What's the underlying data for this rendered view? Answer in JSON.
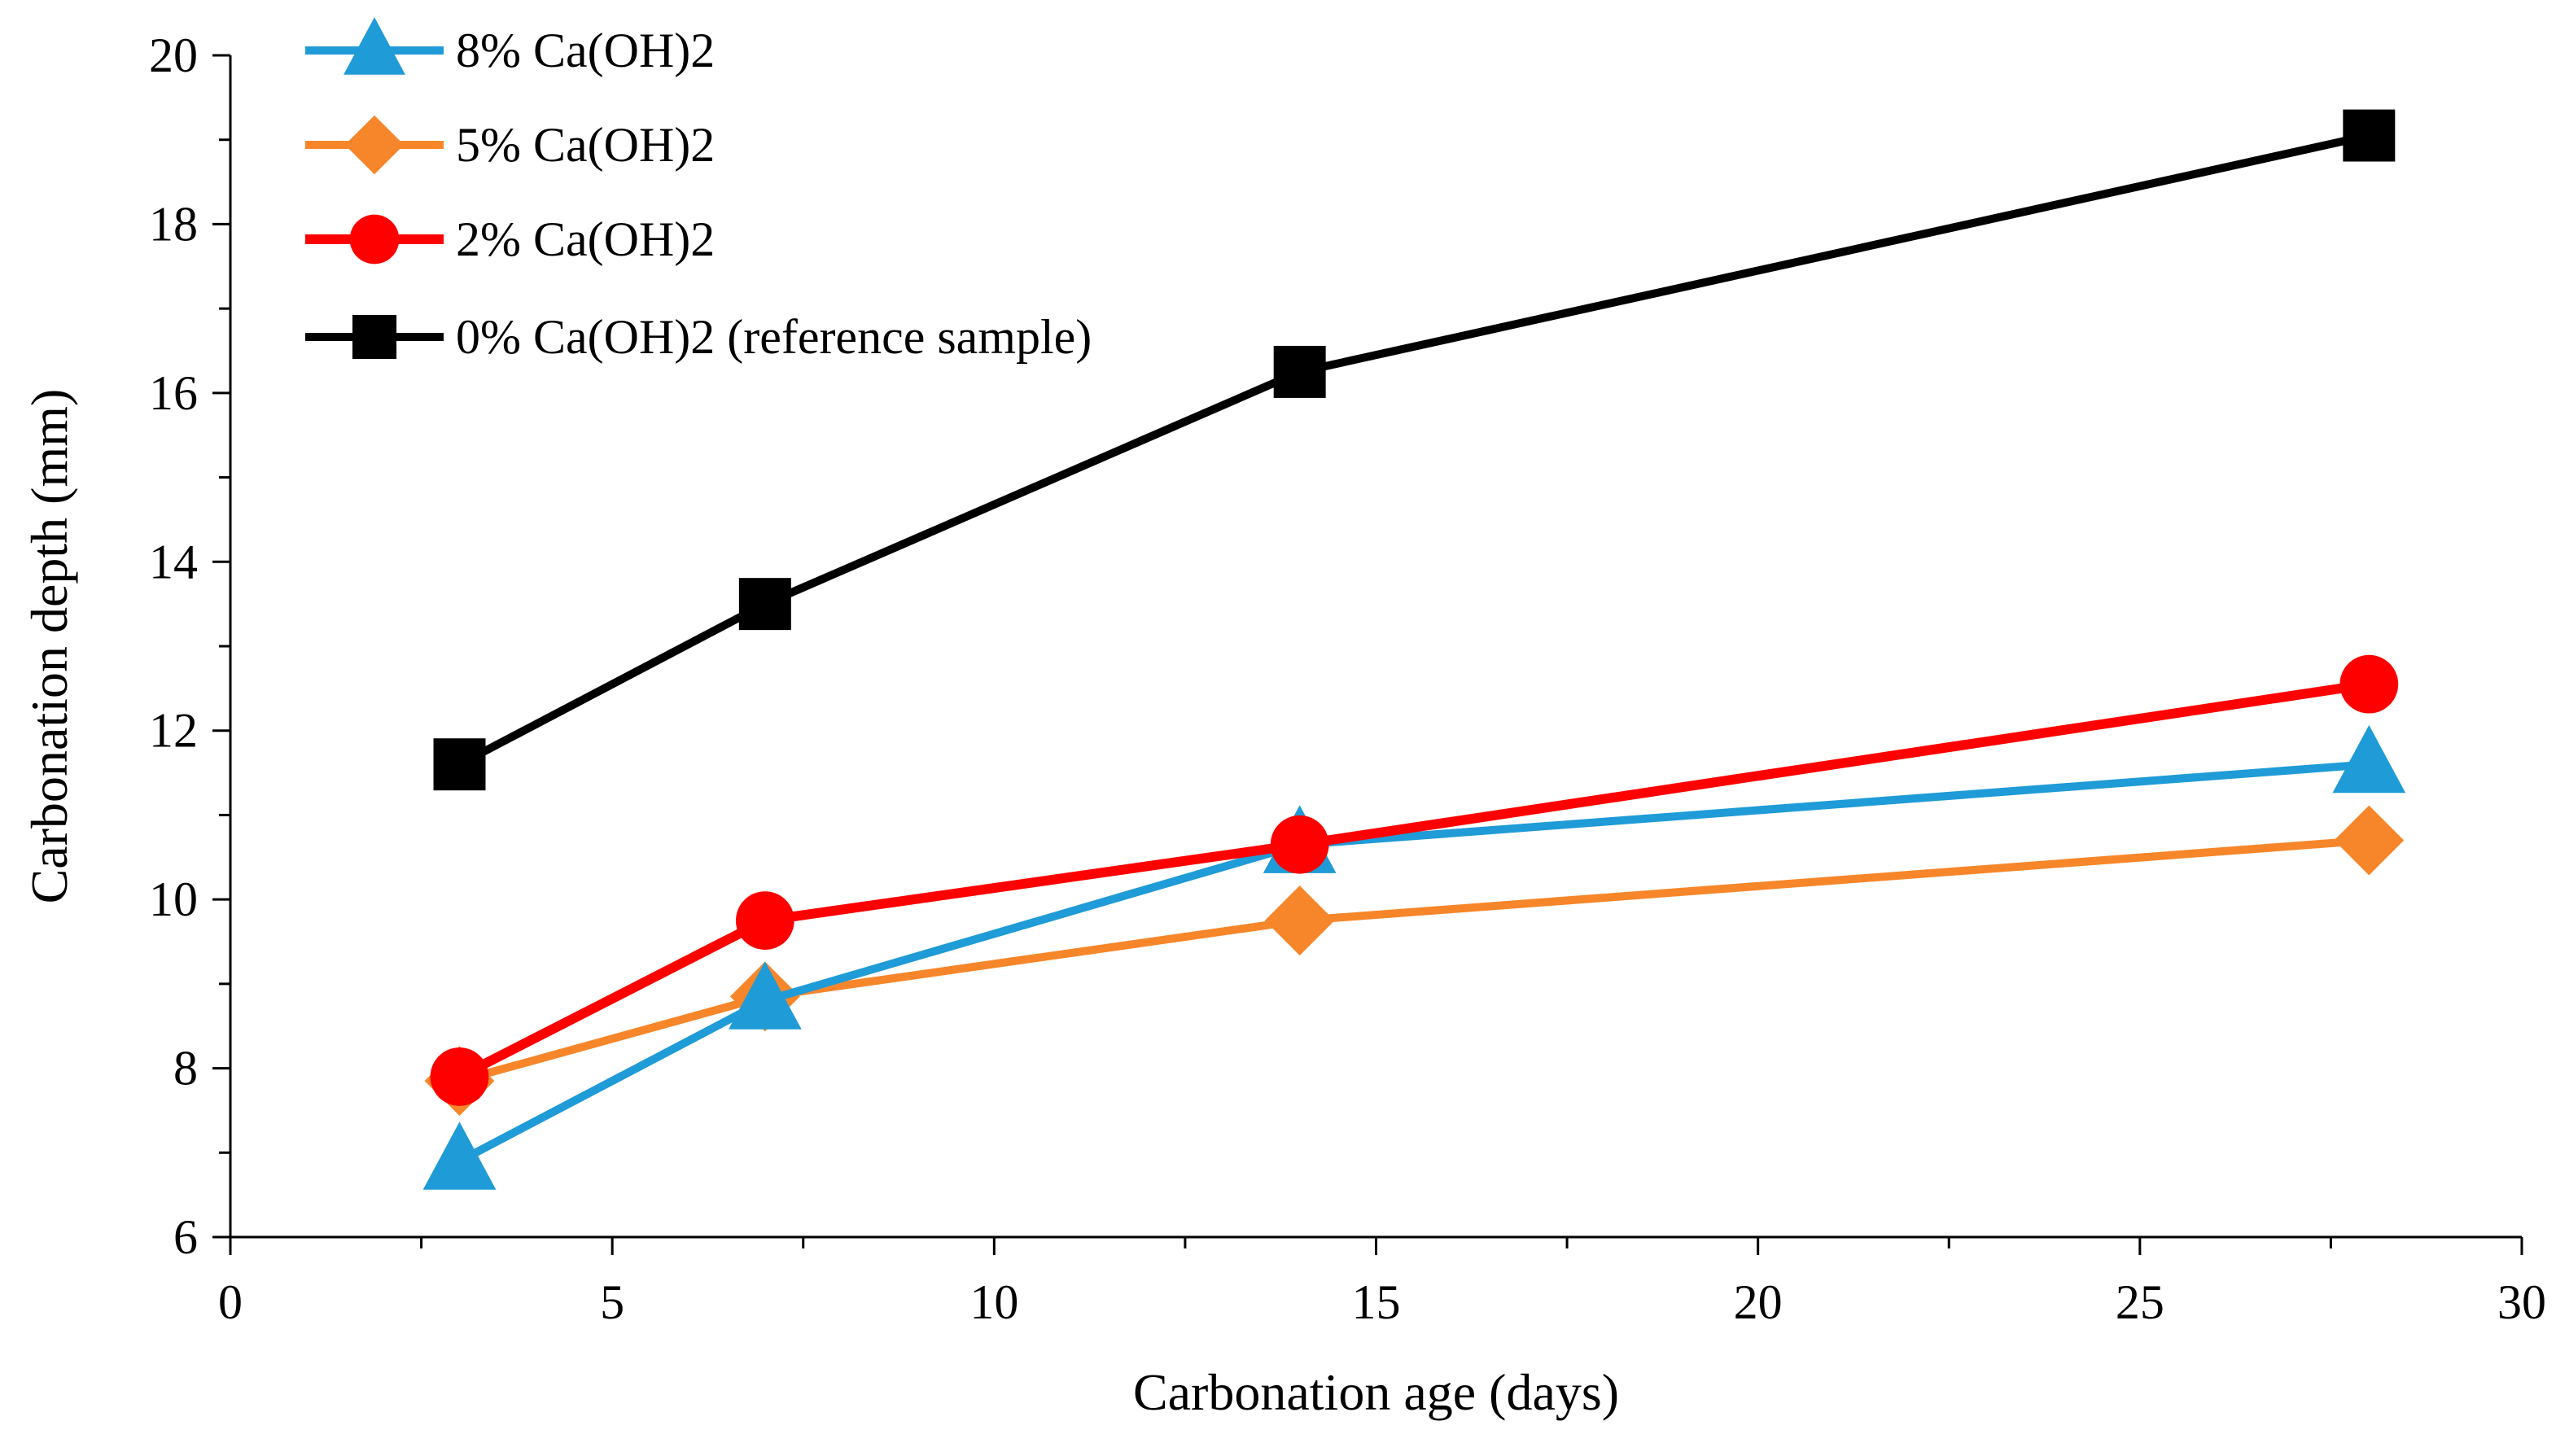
{
  "chart_data": {
    "type": "line",
    "title": "",
    "xlabel": "Carbonation age (days)",
    "ylabel": "Carbonation depth (mm)",
    "xlim": [
      0,
      30
    ],
    "ylim": [
      6,
      20
    ],
    "x_ticks": [
      0,
      5,
      10,
      15,
      20,
      25,
      30
    ],
    "y_ticks": [
      6,
      8,
      10,
      12,
      14,
      16,
      18,
      20
    ],
    "grid": false,
    "legend_position": "top-left",
    "x": [
      3,
      7,
      14,
      28
    ],
    "series": [
      {
        "name": "8% Ca(OH)2",
        "values": [
          6.9,
          8.8,
          10.65,
          11.6
        ],
        "color": "#1f9bd7",
        "marker": "triangle"
      },
      {
        "name": "5% Ca(OH)2",
        "values": [
          7.85,
          8.85,
          9.75,
          10.7
        ],
        "color": "#f7862a",
        "marker": "diamond"
      },
      {
        "name": "2% Ca(OH)2",
        "values": [
          7.9,
          9.75,
          10.65,
          12.55
        ],
        "color": "#fe0000",
        "marker": "circle"
      },
      {
        "name": "0% Ca(OH)2 (reference sample)",
        "values": [
          11.6,
          13.5,
          16.25,
          19.05
        ],
        "color": "#000000",
        "marker": "square"
      }
    ]
  }
}
